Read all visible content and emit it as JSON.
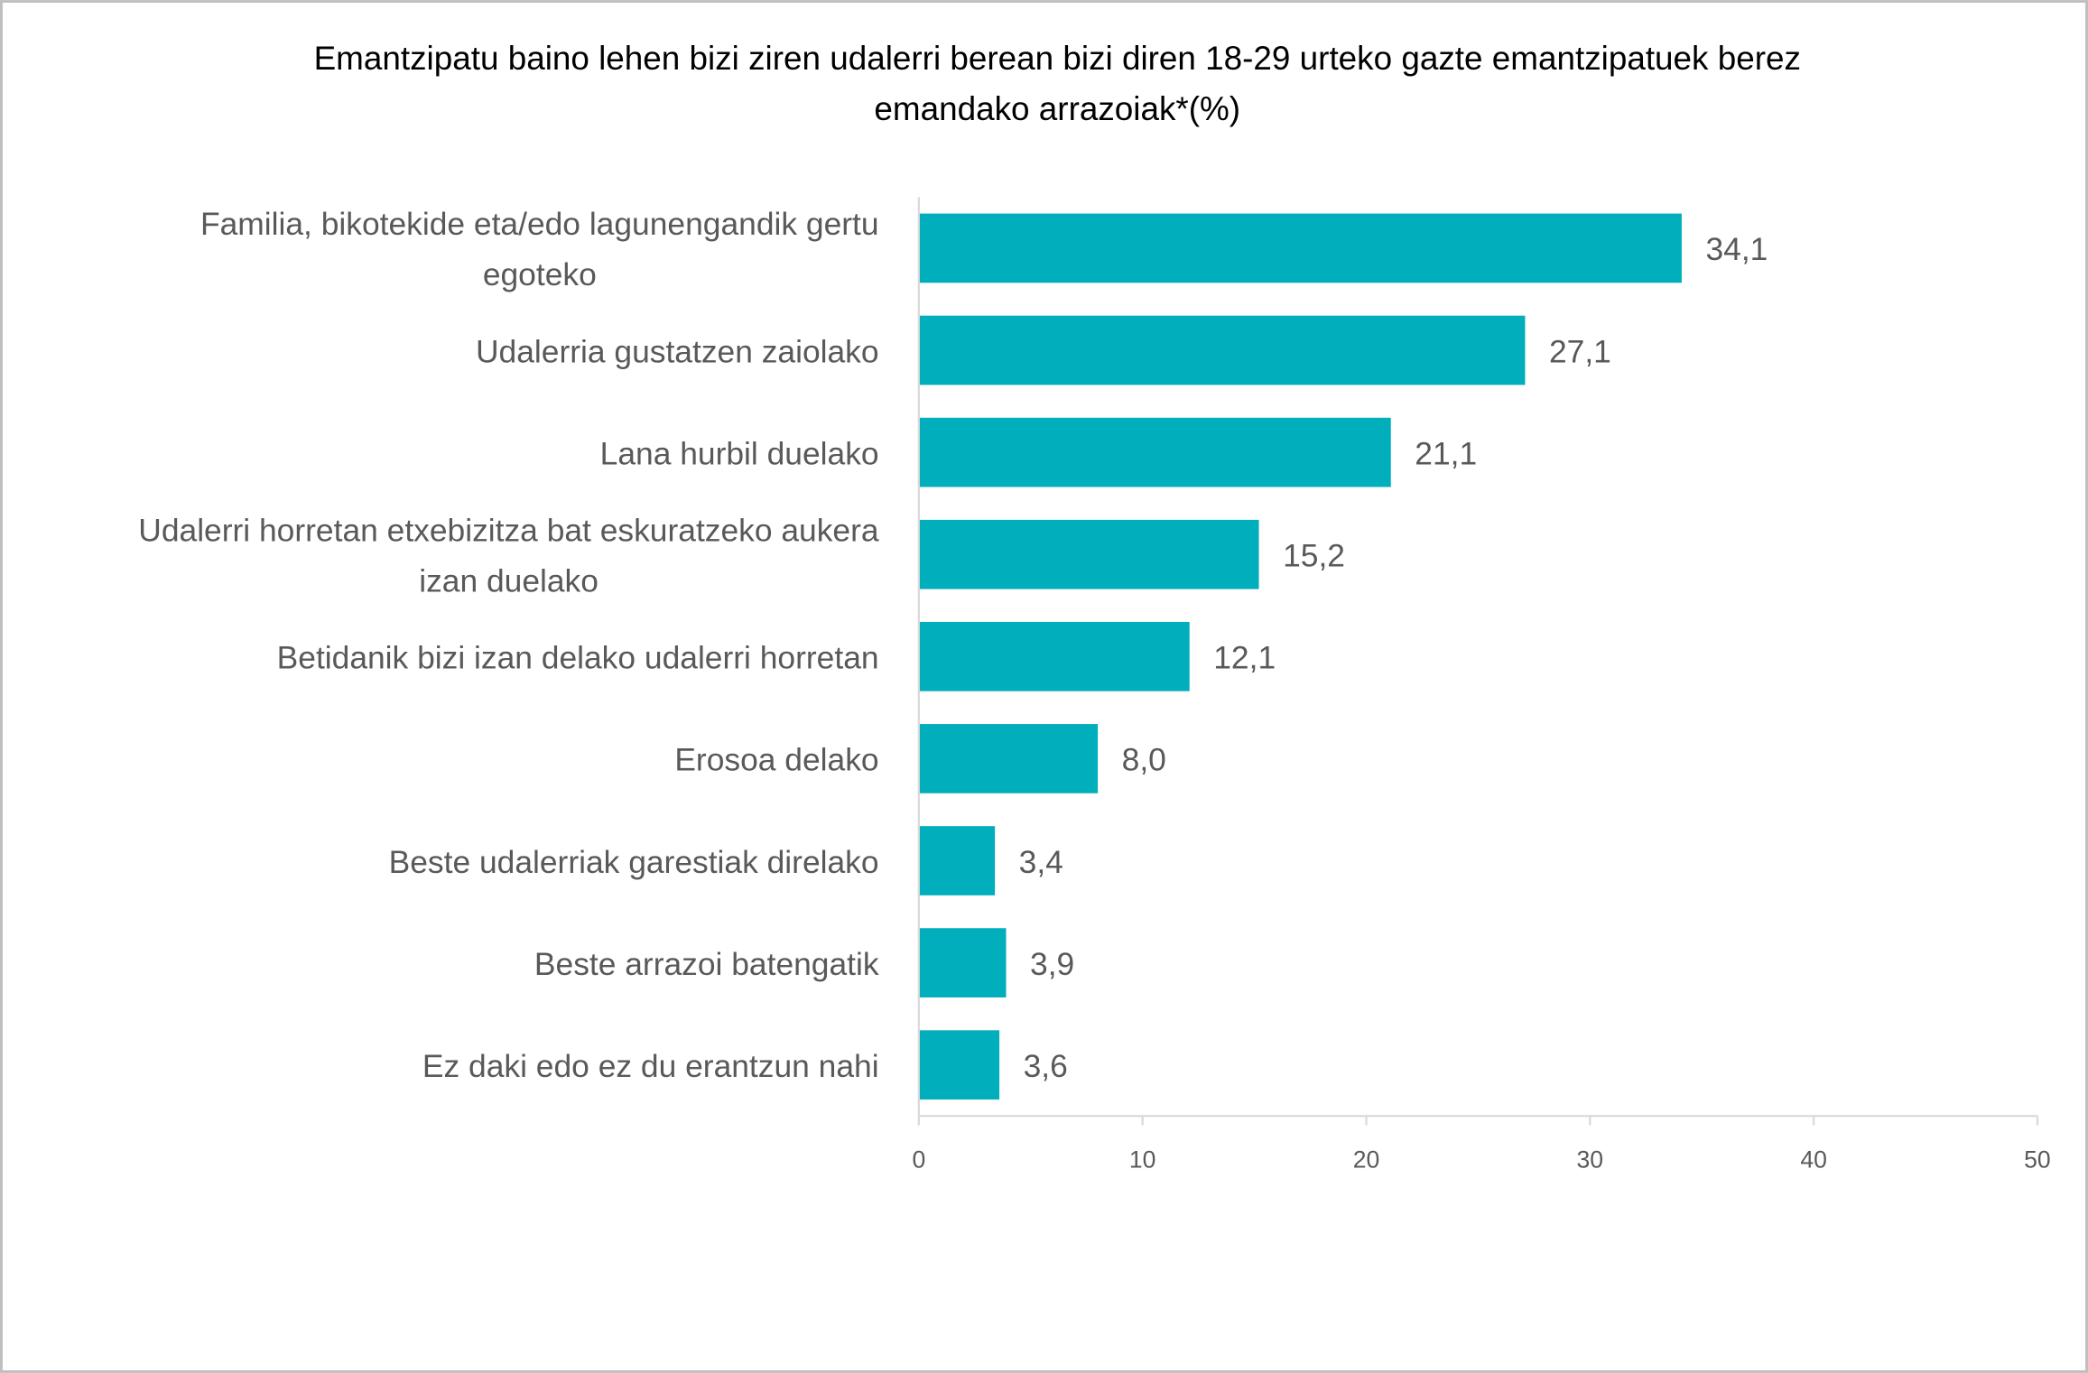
{
  "chart_data": {
    "type": "bar",
    "orientation": "horizontal",
    "title_lines": [
      "Emantzipatu baino lehen bizi ziren udalerri berean bizi diren 18-29 urteko gazte emantzipatuek berez",
      "emandako arrazoiak*(%)"
    ],
    "categories": [
      [
        "Familia, bikotekide eta/edo lagunengandik gertu",
        "egoteko"
      ],
      [
        "Udalerria gustatzen zaiolako"
      ],
      [
        "Lana hurbil duelako"
      ],
      [
        "Udalerri horretan etxebizitza bat eskuratzeko aukera",
        "izan duelako"
      ],
      [
        "Betidanik bizi izan delako udalerri horretan"
      ],
      [
        "Erosoa delako"
      ],
      [
        "Beste udalerriak garestiak direlako"
      ],
      [
        "Beste arrazoi batengatik"
      ],
      [
        "Ez daki edo ez du erantzun nahi"
      ]
    ],
    "values": [
      34.1,
      27.1,
      21.1,
      15.2,
      12.1,
      8.0,
      3.4,
      3.9,
      3.6
    ],
    "data_labels": [
      "34,1",
      "27,1",
      "21,1",
      "15,2",
      "12,1",
      "8,0",
      "3,4",
      "3,9",
      "3,6"
    ],
    "xlim": [
      0,
      50
    ],
    "xticks": [
      "0",
      "10",
      "20",
      "30",
      "40",
      "50"
    ],
    "grid": false,
    "colors": {
      "bar": "#00AEBC",
      "text": "#595959",
      "axis": "#D9D9D9"
    }
  }
}
